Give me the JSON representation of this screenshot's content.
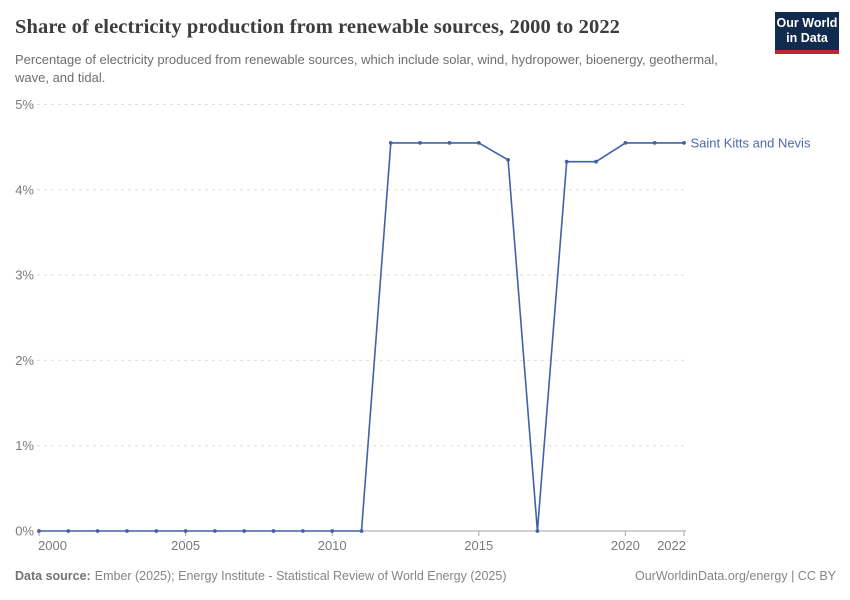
{
  "header": {
    "title": "Share of electricity production from renewable sources, 2000 to 2022",
    "subtitle": "Percentage of electricity produced from renewable sources, which include solar, wind, hydropower, bioenergy, geothermal, wave, and tidal.",
    "logo_line1": "Our World",
    "logo_line2": "in Data"
  },
  "chart_data": {
    "type": "line",
    "title": "Share of electricity production from renewable sources, 2000 to 2022",
    "x": [
      2000,
      2001,
      2002,
      2003,
      2004,
      2005,
      2006,
      2007,
      2008,
      2009,
      2010,
      2011,
      2012,
      2013,
      2014,
      2015,
      2016,
      2017,
      2018,
      2019,
      2020,
      2021,
      2022
    ],
    "series": [
      {
        "name": "Saint Kitts and Nevis",
        "values": [
          0,
          0,
          0,
          0,
          0,
          0,
          0,
          0,
          0,
          0,
          0,
          0,
          4.55,
          4.55,
          4.55,
          4.55,
          4.35,
          0,
          4.33,
          4.33,
          4.55,
          4.55,
          4.55
        ]
      }
    ],
    "xlabel": "",
    "ylabel": "",
    "ylim": [
      0,
      5
    ],
    "ytick_labels": [
      "0%",
      "1%",
      "2%",
      "3%",
      "4%",
      "5%"
    ],
    "xtick_years": [
      2000,
      2005,
      2010,
      2015,
      2020,
      2022
    ],
    "grid": "horizontal-dashed",
    "legend_position": "end-of-line-label"
  },
  "footer": {
    "source_label": "Data source:",
    "source_value": "Ember (2025); Energy Institute - Statistical Review of World Energy (2025)",
    "credit": "OurWorldinData.org/energy | CC BY"
  },
  "colors": {
    "series": "#4162a6",
    "grid": "#dedede",
    "axis": "#a3a3a3",
    "tick_label": "#7a7a7a",
    "entity_label": "#4c6ba8",
    "title": "#3d3d3d",
    "subtitle": "#6e6e6e",
    "footer": "#858585",
    "logo_bg": "#102b4e",
    "logo_red": "#c0262e"
  }
}
